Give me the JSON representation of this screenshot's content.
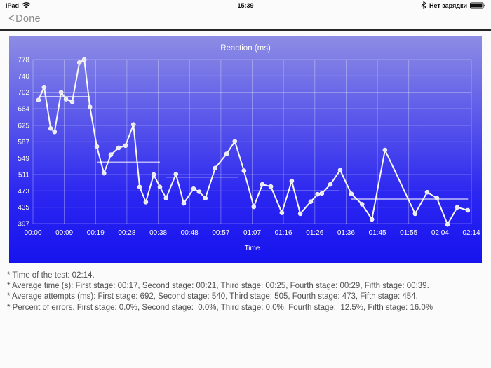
{
  "status_bar": {
    "carrier": "iPad",
    "time": "15:39",
    "battery_status": "Нет зарядки",
    "icons": [
      "wifi-icon",
      "bluetooth-icon",
      "battery-icon"
    ]
  },
  "nav": {
    "chevron": "<",
    "done_label": "Done"
  },
  "chart_data": {
    "type": "line",
    "title": "Reaction (ms)",
    "xlabel": "Time",
    "ylabel": "",
    "ylim": [
      397,
      778
    ],
    "t_max": 134,
    "grid": true,
    "y_ticks": [
      778,
      740,
      702,
      664,
      625,
      587,
      549,
      511,
      473,
      435,
      397
    ],
    "x_tick_labels": [
      "00:00",
      "00:09",
      "00:19",
      "00:28",
      "00:38",
      "00:48",
      "00:57",
      "01:07",
      "01:16",
      "01:26",
      "01:36",
      "01:45",
      "01:55",
      "02:04",
      "02:14"
    ],
    "colors": {
      "bg_top": "#8d8de4",
      "bg_bottom": "#1713ee",
      "line": "#fafafa",
      "grid": "rgba(255,255,255,0.38)",
      "average_line": "rgba(255,255,255,0.85)",
      "text": "#ffffff"
    },
    "points": [
      [
        1.7,
        684
      ],
      [
        3.4,
        714
      ],
      [
        5.4,
        618
      ],
      [
        6.6,
        610
      ],
      [
        8.6,
        702
      ],
      [
        10.1,
        686
      ],
      [
        12.0,
        680
      ],
      [
        14.2,
        771
      ],
      [
        15.7,
        778
      ],
      [
        17.4,
        668
      ],
      [
        19.5,
        576
      ],
      [
        21.7,
        514
      ],
      [
        23.8,
        557
      ],
      [
        26.2,
        573
      ],
      [
        28.3,
        578
      ],
      [
        30.7,
        627
      ],
      [
        32.6,
        482
      ],
      [
        34.5,
        447
      ],
      [
        36.9,
        511
      ],
      [
        38.8,
        482
      ],
      [
        40.7,
        456
      ],
      [
        43.7,
        512
      ],
      [
        46.1,
        444
      ],
      [
        49.1,
        478
      ],
      [
        50.8,
        471
      ],
      [
        52.7,
        456
      ],
      [
        55.7,
        526
      ],
      [
        59.2,
        559
      ],
      [
        61.7,
        588
      ],
      [
        64.5,
        520
      ],
      [
        67.5,
        436
      ],
      [
        70.1,
        488
      ],
      [
        72.7,
        483
      ],
      [
        76.1,
        422
      ],
      [
        79.1,
        496
      ],
      [
        81.7,
        420
      ],
      [
        84.9,
        448
      ],
      [
        87.0,
        465
      ],
      [
        88.3,
        467
      ],
      [
        90.9,
        488
      ],
      [
        93.9,
        521
      ],
      [
        97.3,
        466
      ],
      [
        100.6,
        442
      ],
      [
        103.6,
        407
      ],
      [
        107.6,
        568
      ],
      [
        116.8,
        420
      ],
      [
        120.5,
        470
      ],
      [
        123.5,
        456
      ],
      [
        126.7,
        395
      ],
      [
        129.7,
        435
      ],
      [
        132.9,
        428
      ]
    ],
    "stage_averages": [
      {
        "stage": 1,
        "value": 692,
        "t_start": 1.7,
        "t_end": 17.4
      },
      {
        "stage": 2,
        "value": 540,
        "t_start": 19.5,
        "t_end": 38.8
      },
      {
        "stage": 3,
        "value": 505,
        "t_start": 40.7,
        "t_end": 62.8
      },
      {
        "stage": 4,
        "value": 473,
        "t_start": 67.3,
        "t_end": 93.5
      },
      {
        "stage": 5,
        "value": 454,
        "t_start": 97.3,
        "t_end": 133.0
      }
    ]
  },
  "summary": {
    "line1": "* Time of the test: 02:14.",
    "line2": "* Average time (s): First stage: 00:17, Second stage: 00:21, Third stage: 00:25, Fourth stage: 00:29, Fifth stage: 00:39.",
    "line3": "* Average attempts (ms): First stage: 692, Second stage: 540, Third stage: 505, Fourth stage: 473, Fifth stage: 454.",
    "line4": "* Percent of errors. First stage: 0.0%, Second stage:  0.0%, Third stage: 0.0%, Fourth stage:  12.5%, Fifth stage: 16.0%"
  }
}
